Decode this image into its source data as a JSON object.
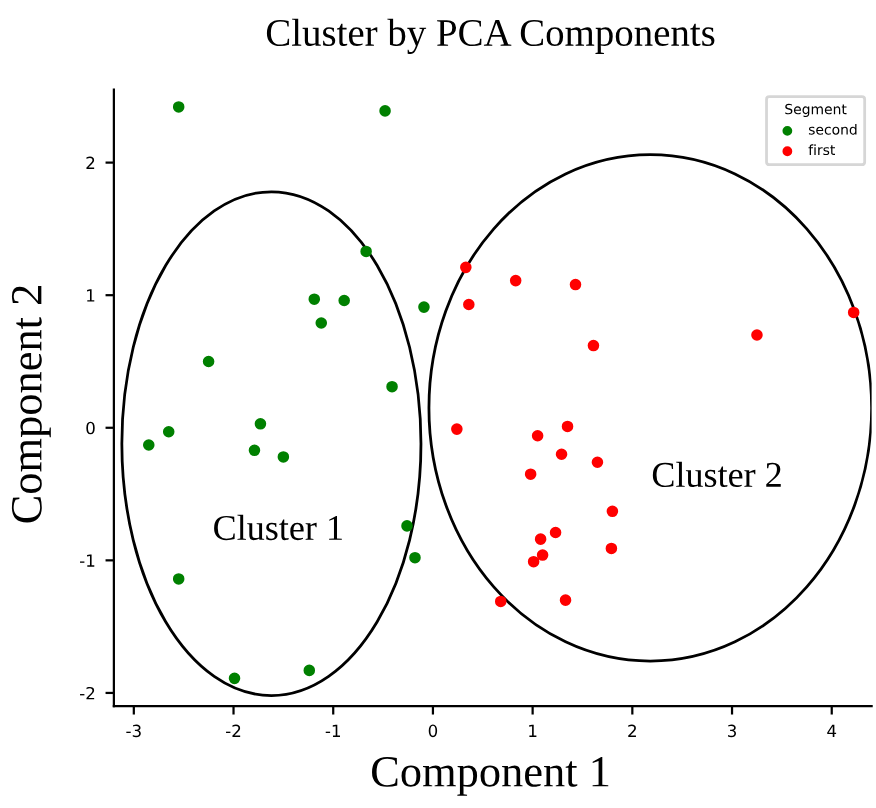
{
  "chart_data": {
    "type": "scatter",
    "title": "Cluster by PCA Components",
    "xlabel": "Component 1",
    "ylabel": "Component 2",
    "legend_title": "Segment",
    "legend": "top right",
    "marker": "circle",
    "grid": false,
    "xlim": [
      -3.2,
      4.4
    ],
    "ylim": [
      -2.1,
      2.55
    ],
    "xticks": [
      -3,
      -2,
      -1,
      0,
      1,
      2,
      3,
      4
    ],
    "yticks": [
      -2,
      -1,
      0,
      1,
      2
    ],
    "annotations": [
      "Cluster 1",
      "Cluster 2"
    ],
    "series": [
      {
        "name": "second",
        "color": "#008000",
        "x": [
          -2.55,
          -0.48,
          -0.67,
          -1.19,
          -0.89,
          -1.12,
          -0.09,
          -2.25,
          -0.41,
          -2.85,
          -2.65,
          -1.73,
          -1.79,
          -1.5,
          -0.26,
          -0.18,
          -2.55,
          -1.99,
          -1.24
        ],
        "values": [
          2.42,
          2.39,
          1.33,
          0.97,
          0.96,
          0.79,
          0.91,
          0.5,
          0.31,
          -0.13,
          -0.03,
          0.03,
          -0.17,
          -0.22,
          -0.74,
          -0.98,
          -1.14,
          -1.89,
          -1.83
        ]
      },
      {
        "name": "first",
        "color": "#ff0000",
        "x": [
          0.33,
          0.36,
          0.83,
          1.43,
          1.61,
          3.25,
          4.22,
          0.24,
          1.05,
          1.35,
          1.29,
          1.65,
          0.98,
          1.8,
          1.23,
          1.08,
          1.1,
          1.01,
          1.79,
          0.68,
          1.33
        ],
        "values": [
          1.21,
          0.93,
          1.11,
          1.08,
          0.62,
          0.7,
          0.87,
          -0.01,
          -0.06,
          0.01,
          -0.2,
          -0.26,
          -0.35,
          -0.63,
          -0.79,
          -0.84,
          -0.96,
          -1.01,
          -0.91,
          -1.31,
          -1.3
        ]
      }
    ]
  }
}
